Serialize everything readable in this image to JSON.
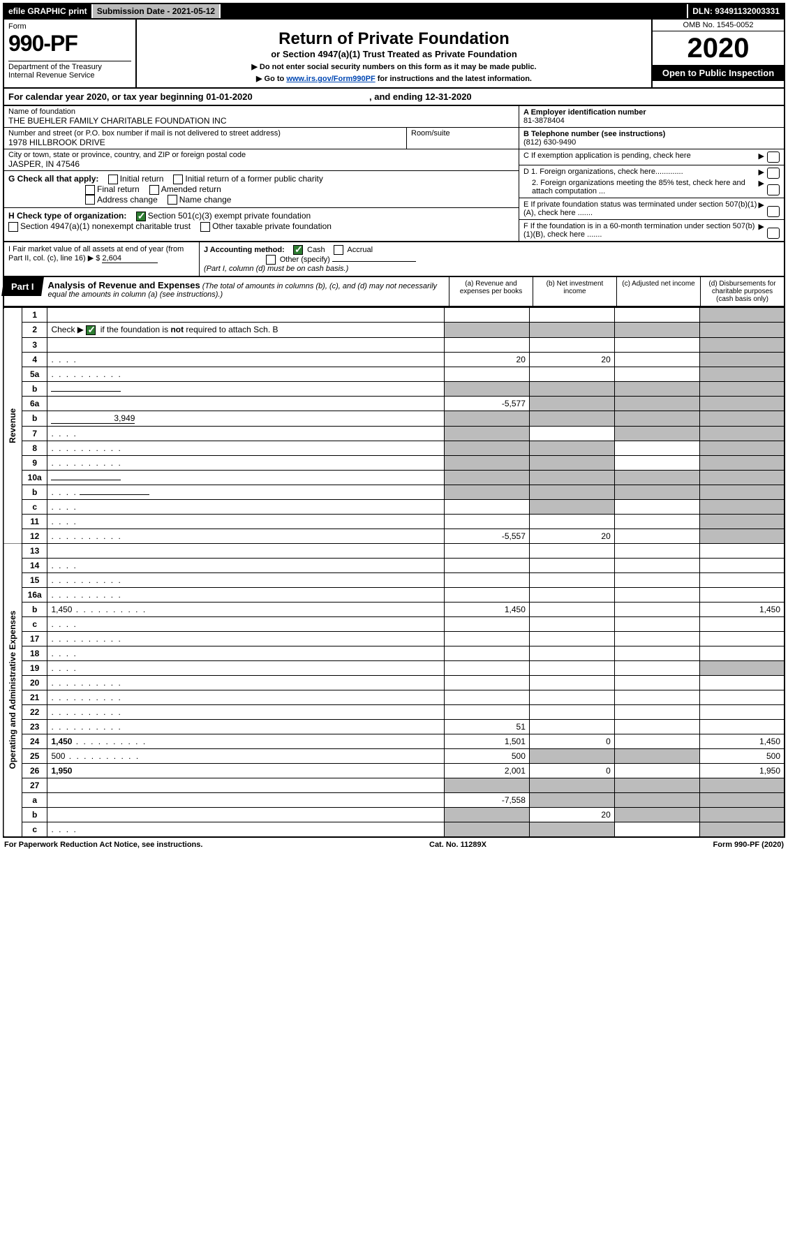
{
  "topbar": {
    "efile": "efile GRAPHIC print",
    "sub_label": "Submission Date - 2021-05-12",
    "dln": "DLN: 93491132003331"
  },
  "header": {
    "form_label": "Form",
    "form_num": "990-PF",
    "dept": "Department of the Treasury\nInternal Revenue Service",
    "title": "Return of Private Foundation",
    "subtitle": "or Section 4947(a)(1) Trust Treated as Private Foundation",
    "instr1": "▶ Do not enter social security numbers on this form as it may be made public.",
    "instr2_pre": "▶ Go to ",
    "instr2_link": "www.irs.gov/Form990PF",
    "instr2_post": " for instructions and the latest information.",
    "omb": "OMB No. 1545-0052",
    "year": "2020",
    "open": "Open to Public Inspection"
  },
  "calyear": {
    "pre": "For calendar year 2020, or tax year beginning ",
    "begin": "01-01-2020",
    "mid": " , and ending ",
    "end": "12-31-2020"
  },
  "info": {
    "name_label": "Name of foundation",
    "name": "THE BUEHLER FAMILY CHARITABLE FOUNDATION INC",
    "addr_label": "Number and street (or P.O. box number if mail is not delivered to street address)",
    "addr": "1978 HILLBROOK DRIVE",
    "room_label": "Room/suite",
    "city_label": "City or town, state or province, country, and ZIP or foreign postal code",
    "city": "JASPER, IN  47546",
    "ein_label": "A Employer identification number",
    "ein": "81-3878404",
    "tel_label": "B Telephone number (see instructions)",
    "tel": "(812) 630-9490",
    "c_label": "C If exemption application is pending, check here",
    "d1": "D 1. Foreign organizations, check here.............",
    "d2": "2. Foreign organizations meeting the 85% test, check here and attach computation ...",
    "e": "E  If private foundation status was terminated under section 507(b)(1)(A), check here .......",
    "f": "F  If the foundation is in a 60-month termination under section 507(b)(1)(B), check here .......",
    "g_label": "G Check all that apply:",
    "g_opts": [
      "Initial return",
      "Initial return of a former public charity",
      "Final return",
      "Amended return",
      "Address change",
      "Name change"
    ],
    "h_label": "H Check type of organization:",
    "h_opts": [
      "Section 501(c)(3) exempt private foundation",
      "Section 4947(a)(1) nonexempt charitable trust",
      "Other taxable private foundation"
    ],
    "i_label": "I Fair market value of all assets at end of year (from Part II, col. (c), line 16) ▶ $",
    "i_val": "2,604",
    "j_label": "J Accounting method:",
    "j_opts": [
      "Cash",
      "Accrual"
    ],
    "j_other": "Other (specify)",
    "j_note": "(Part I, column (d) must be on cash basis.)"
  },
  "part1": {
    "tab": "Part I",
    "title": "Analysis of Revenue and Expenses",
    "note": " (The total of amounts in columns (b), (c), and (d) may not necessarily equal the amounts in column (a) (see instructions).)",
    "cols": {
      "a": "(a)   Revenue and expenses per books",
      "b": "(b)  Net investment income",
      "c": "(c)  Adjusted net income",
      "d": "(d)  Disbursements for charitable purposes (cash basis only)"
    }
  },
  "sections": {
    "rev": "Revenue",
    "exp": "Operating and Administrative Expenses"
  },
  "rows": [
    {
      "n": "1",
      "d": "",
      "a": "",
      "b": "",
      "c": "",
      "shade": [
        "d"
      ]
    },
    {
      "n": "2",
      "d": "",
      "a": "",
      "b": "",
      "c": "",
      "shade": [
        "a",
        "b",
        "c",
        "d"
      ],
      "chk": true
    },
    {
      "n": "3",
      "d": "",
      "a": "",
      "b": "",
      "c": "",
      "shade": [
        "d"
      ]
    },
    {
      "n": "4",
      "d": "",
      "a": "20",
      "b": "20",
      "c": "",
      "shade": [
        "d"
      ],
      "dots": "s"
    },
    {
      "n": "5a",
      "d": "",
      "a": "",
      "b": "",
      "c": "",
      "shade": [
        "d"
      ],
      "dots": "l"
    },
    {
      "n": "b",
      "d": "",
      "a": "",
      "b": "",
      "c": "",
      "shade": [
        "a",
        "b",
        "c",
        "d"
      ],
      "blank": true
    },
    {
      "n": "6a",
      "d": "",
      "a": "-5,577",
      "b": "",
      "c": "",
      "shade": [
        "b",
        "c",
        "d"
      ]
    },
    {
      "n": "b",
      "d": "",
      "a": "",
      "b": "",
      "c": "",
      "shade": [
        "a",
        "b",
        "c",
        "d"
      ],
      "inline": "3,949"
    },
    {
      "n": "7",
      "d": "",
      "a": "",
      "b": "",
      "c": "",
      "shade": [
        "a",
        "c",
        "d"
      ],
      "dots": "s"
    },
    {
      "n": "8",
      "d": "",
      "a": "",
      "b": "",
      "c": "",
      "shade": [
        "a",
        "b",
        "d"
      ],
      "dots": "l"
    },
    {
      "n": "9",
      "d": "",
      "a": "",
      "b": "",
      "c": "",
      "shade": [
        "a",
        "b",
        "d"
      ],
      "dots": "l"
    },
    {
      "n": "10a",
      "d": "",
      "a": "",
      "b": "",
      "c": "",
      "shade": [
        "a",
        "b",
        "c",
        "d"
      ],
      "blank": true
    },
    {
      "n": "b",
      "d": "",
      "a": "",
      "b": "",
      "c": "",
      "shade": [
        "a",
        "b",
        "c",
        "d"
      ],
      "dots": "s",
      "blank": true
    },
    {
      "n": "c",
      "d": "",
      "a": "",
      "b": "",
      "c": "",
      "shade": [
        "b",
        "d"
      ],
      "dots": "s"
    },
    {
      "n": "11",
      "d": "",
      "a": "",
      "b": "",
      "c": "",
      "shade": [
        "d"
      ],
      "dots": "s"
    },
    {
      "n": "12",
      "d": "",
      "a": "-5,557",
      "b": "20",
      "c": "",
      "shade": [
        "d"
      ],
      "bold": true,
      "dots": "l"
    },
    {
      "n": "13",
      "d": "",
      "a": "",
      "b": "",
      "c": ""
    },
    {
      "n": "14",
      "d": "",
      "a": "",
      "b": "",
      "c": "",
      "dots": "s"
    },
    {
      "n": "15",
      "d": "",
      "a": "",
      "b": "",
      "c": "",
      "dots": "l"
    },
    {
      "n": "16a",
      "d": "",
      "a": "",
      "b": "",
      "c": "",
      "dots": "l"
    },
    {
      "n": "b",
      "d": "1,450",
      "a": "1,450",
      "b": "",
      "c": "",
      "dots": "l"
    },
    {
      "n": "c",
      "d": "",
      "a": "",
      "b": "",
      "c": "",
      "dots": "s"
    },
    {
      "n": "17",
      "d": "",
      "a": "",
      "b": "",
      "c": "",
      "dots": "l"
    },
    {
      "n": "18",
      "d": "",
      "a": "",
      "b": "",
      "c": "",
      "dots": "s"
    },
    {
      "n": "19",
      "d": "",
      "a": "",
      "b": "",
      "c": "",
      "shade": [
        "d"
      ],
      "dots": "s"
    },
    {
      "n": "20",
      "d": "",
      "a": "",
      "b": "",
      "c": "",
      "dots": "l"
    },
    {
      "n": "21",
      "d": "",
      "a": "",
      "b": "",
      "c": "",
      "dots": "l"
    },
    {
      "n": "22",
      "d": "",
      "a": "",
      "b": "",
      "c": "",
      "dots": "l"
    },
    {
      "n": "23",
      "d": "",
      "a": "51",
      "b": "",
      "c": "",
      "dots": "l"
    },
    {
      "n": "24",
      "d": "1,450",
      "a": "1,501",
      "b": "0",
      "c": "",
      "bold": true,
      "dots": "l"
    },
    {
      "n": "25",
      "d": "500",
      "a": "500",
      "b": "",
      "c": "",
      "shade": [
        "b",
        "c"
      ],
      "dots": "l"
    },
    {
      "n": "26",
      "d": "1,950",
      "a": "2,001",
      "b": "0",
      "c": "",
      "bold": true
    },
    {
      "n": "27",
      "d": "",
      "a": "",
      "b": "",
      "c": "",
      "shade": [
        "a",
        "b",
        "c",
        "d"
      ]
    },
    {
      "n": "a",
      "d": "",
      "a": "-7,558",
      "b": "",
      "c": "",
      "shade": [
        "b",
        "c",
        "d"
      ],
      "bold": true
    },
    {
      "n": "b",
      "d": "",
      "a": "",
      "b": "20",
      "c": "",
      "shade": [
        "a",
        "c",
        "d"
      ],
      "bold": true
    },
    {
      "n": "c",
      "d": "",
      "a": "",
      "b": "",
      "c": "",
      "shade": [
        "a",
        "b",
        "d"
      ],
      "bold": true,
      "dots": "s"
    }
  ],
  "footer": {
    "left": "For Paperwork Reduction Act Notice, see instructions.",
    "mid": "Cat. No. 11289X",
    "right": "Form 990-PF (2020)"
  }
}
